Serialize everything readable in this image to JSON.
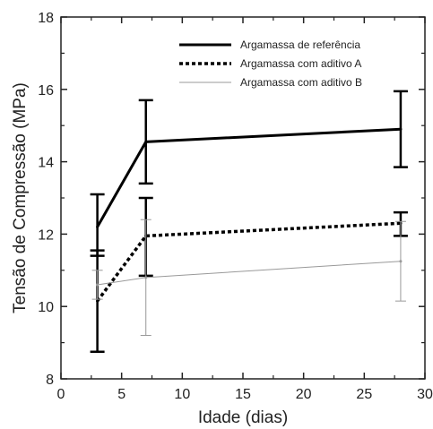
{
  "chart_data": {
    "type": "line",
    "xlabel": "Idade (dias)",
    "ylabel": "Tensão de Compressão (MPa)",
    "xlim": [
      0,
      30
    ],
    "ylim": [
      8,
      18
    ],
    "x_ticks": [
      0,
      5,
      10,
      15,
      20,
      25,
      30
    ],
    "y_ticks": [
      8,
      10,
      12,
      14,
      16,
      18
    ],
    "grid": false,
    "legend_position": "top-right",
    "series": [
      {
        "name": "Argamassa de referência",
        "style": "solid-thick",
        "color": "#000000",
        "x": [
          3,
          7,
          28
        ],
        "y": [
          12.2,
          14.55,
          14.9
        ],
        "err_low": [
          11.4,
          13.4,
          13.85
        ],
        "err_high": [
          13.1,
          15.7,
          15.95
        ]
      },
      {
        "name": "Argamassa com aditivo A",
        "style": "dotted-thick",
        "color": "#000000",
        "x": [
          3,
          7,
          28
        ],
        "y": [
          10.15,
          11.95,
          12.3
        ],
        "err_low": [
          8.75,
          10.85,
          11.95
        ],
        "err_high": [
          11.55,
          13.0,
          12.6
        ]
      },
      {
        "name": "Argamassa com aditivo B",
        "style": "solid-thin",
        "color": "#999999",
        "x": [
          3,
          7,
          28
        ],
        "y": [
          10.6,
          10.8,
          11.25
        ],
        "err_low": [
          10.2,
          9.2,
          10.15
        ],
        "err_high": [
          11.0,
          12.4,
          12.35
        ]
      }
    ]
  }
}
